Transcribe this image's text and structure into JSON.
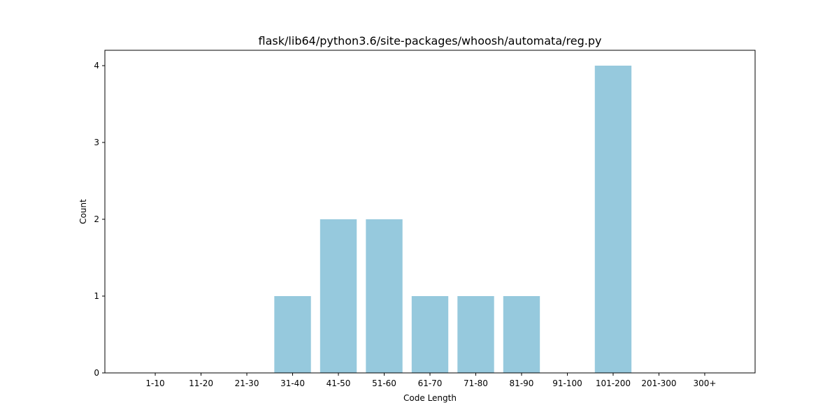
{
  "chart_data": {
    "type": "bar",
    "title": "flask/lib64/python3.6/site-packages/whoosh/automata/reg.py",
    "xlabel": "Code Length",
    "ylabel": "Count",
    "categories": [
      "1-10",
      "11-20",
      "21-30",
      "31-40",
      "41-50",
      "51-60",
      "61-70",
      "71-80",
      "81-90",
      "91-100",
      "101-200",
      "201-300",
      "300+"
    ],
    "values": [
      0,
      0,
      0,
      1,
      2,
      2,
      1,
      1,
      1,
      0,
      4,
      0,
      0
    ],
    "yticks": [
      0,
      1,
      2,
      3,
      4
    ],
    "ylim": [
      0,
      4.2
    ],
    "grid": false,
    "bar_color": "#96c9dd"
  }
}
